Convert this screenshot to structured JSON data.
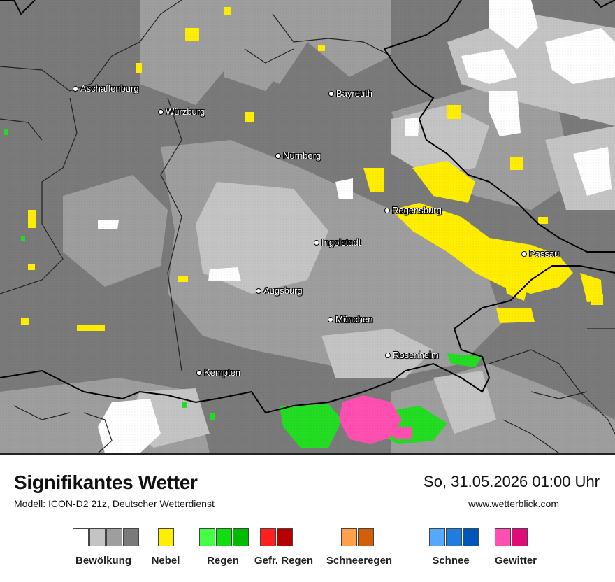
{
  "title": "Signifikantes Wetter",
  "model": "Modell: ICON-D2 21z, Deutscher Wetterdienst",
  "datetime": "So, 31.05.2026 01:00 Uhr",
  "website": "www.wetterblick.com",
  "cities": [
    {
      "name": "Aschaffenburg"
    },
    {
      "name": "Würzburg"
    },
    {
      "name": "Bayreuth"
    },
    {
      "name": "Nürnberg"
    },
    {
      "name": "Regensburg"
    },
    {
      "name": "Ingolstadt"
    },
    {
      "name": "Passau"
    },
    {
      "name": "Augsburg"
    },
    {
      "name": "München"
    },
    {
      "name": "Rosenheim"
    },
    {
      "name": "Kempten"
    }
  ],
  "legend": [
    {
      "label": "Bewölkung",
      "colors": [
        "#ffffff",
        "#c4c4c4",
        "#9e9e9e",
        "#7a7a7a"
      ]
    },
    {
      "label": "Nebel",
      "colors": [
        "#ffee00"
      ]
    },
    {
      "label": "Regen",
      "colors": [
        "#44ff44",
        "#11dd11",
        "#00bb00"
      ]
    },
    {
      "label": "Gefr. Regen",
      "colors": [
        "#ff1f1f",
        "#b50000"
      ]
    },
    {
      "label": "Schneeregen",
      "colors": [
        "#ffa04a",
        "#d45f0a"
      ]
    },
    {
      "label": "Schnee",
      "colors": [
        "#55aaff",
        "#1f7de0",
        "#0055bb"
      ]
    },
    {
      "label": "Gewitter",
      "colors": [
        "#ff4fb0",
        "#e00a78"
      ]
    }
  ]
}
